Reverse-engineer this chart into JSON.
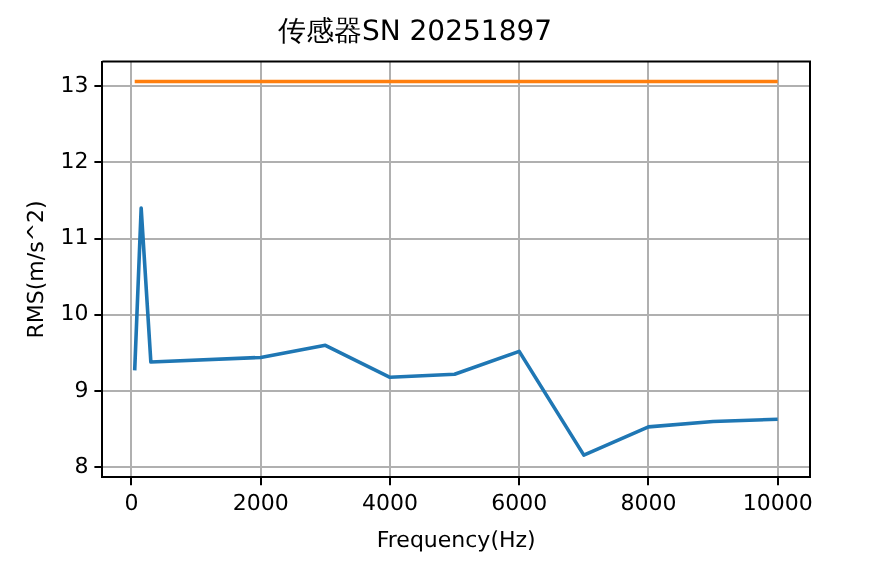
{
  "chart_data": {
    "type": "line",
    "title": "传感器SN 20251897",
    "xlabel": "Frequency(Hz)",
    "ylabel": "RMS(m/s^2)",
    "series": [
      {
        "color": "#1f77b4",
        "x": [
          50,
          150,
          300,
          2000,
          3000,
          4000,
          5000,
          6000,
          7000,
          8000,
          9000,
          10000
        ],
        "values": [
          9.27,
          11.4,
          9.38,
          9.44,
          9.6,
          9.18,
          9.22,
          9.52,
          8.16,
          8.53,
          8.6,
          8.63
        ]
      },
      {
        "color": "#ff7f0e",
        "x": [
          50,
          10000
        ],
        "values": [
          13.06,
          13.06
        ]
      }
    ],
    "xlim": [
      -450,
      10500
    ],
    "ylim": [
      7.87,
      13.32
    ],
    "xticks": [
      0,
      2000,
      4000,
      6000,
      8000,
      10000
    ],
    "yticks": [
      8,
      9,
      10,
      11,
      12,
      13
    ],
    "grid": true,
    "legend": false,
    "marker": "none",
    "line_style": "solid"
  }
}
